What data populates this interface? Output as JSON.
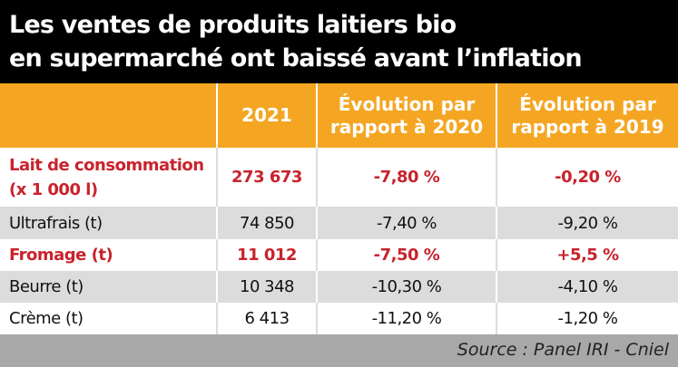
{
  "title": {
    "line1": "Les ventes de produits laitiers bio",
    "line2": "en supermarché ont baissé avant l’inflation"
  },
  "colors": {
    "header": "#F4A623",
    "highlight": "#C8232C",
    "title_bg": "#000000"
  },
  "chart_data": {
    "type": "table",
    "title": "Les ventes de produits laitiers bio en supermarché ont baissé avant l’inflation",
    "columns": [
      "",
      "2021",
      "Évolution par rapport à 2020",
      "Évolution par rapport à 2019"
    ],
    "rows": [
      {
        "label_l1": "Lait de consommation",
        "label_l2": "(x 1 000 l)",
        "v2021": "273 673",
        "e2020": "-7,80 %",
        "e2019": "-0,20 %",
        "highlight": true
      },
      {
        "label": "Ultrafrais (t)",
        "v2021": "74 850",
        "e2020": "-7,40 %",
        "e2019": "-9,20 %"
      },
      {
        "label": "Fromage (t)",
        "v2021": "11 012",
        "e2020": "-7,50 %",
        "e2019": "+5,5 %",
        "highlight": true
      },
      {
        "label": "Beurre (t)",
        "v2021": "10 348",
        "e2020": "-10,30 %",
        "e2019": "-4,10 %"
      },
      {
        "label": "Crème (t)",
        "v2021": "6 413",
        "e2020": "-11,20 %",
        "e2019": "-1,20 %"
      }
    ],
    "source": "Source : Panel IRI - Cniel"
  },
  "headers": {
    "c1": "2021",
    "c2_l1": "Évolution par",
    "c2_l2": "rapport à 2020",
    "c3_l1": "Évolution par",
    "c3_l2": "rapport à 2019"
  }
}
